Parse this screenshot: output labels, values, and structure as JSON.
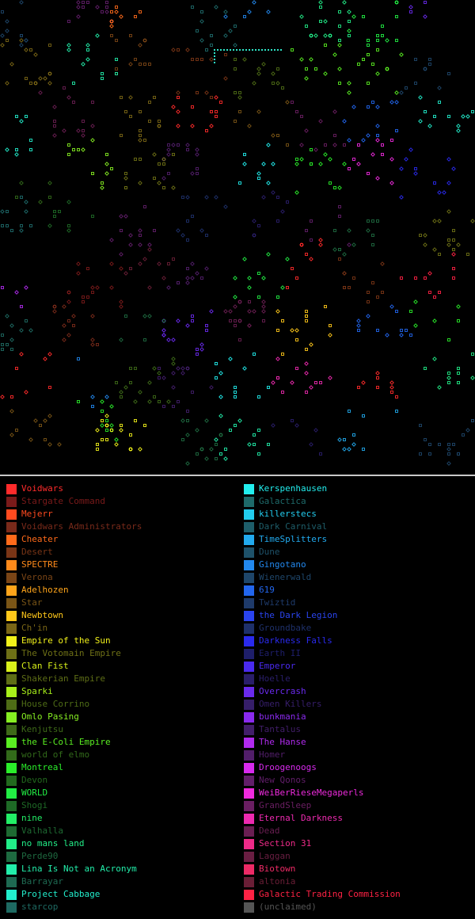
{
  "map": {
    "seed": 7,
    "stars_per_region": 900,
    "fleet_line_color": "#2ee6c8"
  },
  "legend": {
    "left": [
      {
        "name": "Voidwars",
        "color": "#ff2b2b"
      },
      {
        "name": "Stargate Command",
        "color": "#7a1a1a"
      },
      {
        "name": "Mejerr",
        "color": "#ff4a1f"
      },
      {
        "name": "Voidwars Administrators",
        "color": "#7a2a1a"
      },
      {
        "name": "Cheater",
        "color": "#ff6a1a"
      },
      {
        "name": "Desert",
        "color": "#7a3516"
      },
      {
        "name": "SPECTRE",
        "color": "#ff8a1a"
      },
      {
        "name": "Verona",
        "color": "#7a4516"
      },
      {
        "name": "Adelhozen",
        "color": "#ffa51a"
      },
      {
        "name": "Star",
        "color": "#7a5516"
      },
      {
        "name": "Newbtown",
        "color": "#ffc81a"
      },
      {
        "name": "Ch'in",
        "color": "#7a6616"
      },
      {
        "name": "Empire of the Sun",
        "color": "#f2f21a"
      },
      {
        "name": "The Votomain Empire",
        "color": "#6e7016"
      },
      {
        "name": "Clan Fist",
        "color": "#d8f01a"
      },
      {
        "name": "Shakerian Empire",
        "color": "#5e6e16"
      },
      {
        "name": "Sparki",
        "color": "#a8f01a"
      },
      {
        "name": "House Corrino",
        "color": "#4e6c16"
      },
      {
        "name": "Omlo Pasing",
        "color": "#86ee22"
      },
      {
        "name": "Kenjutsu",
        "color": "#3e6a18"
      },
      {
        "name": "the E-Coli Empire",
        "color": "#5aee22"
      },
      {
        "name": "world of elmo",
        "color": "#326a1a"
      },
      {
        "name": "Montreal",
        "color": "#2aee2a"
      },
      {
        "name": "Devon",
        "color": "#226a1e"
      },
      {
        "name": "WORLD",
        "color": "#22ee44"
      },
      {
        "name": "Shogi",
        "color": "#1e6a26"
      },
      {
        "name": "nine",
        "color": "#22ee66"
      },
      {
        "name": "Valhalla",
        "color": "#1e6a32"
      },
      {
        "name": "no mans land",
        "color": "#22ee88"
      },
      {
        "name": "Perde90",
        "color": "#1e6a40"
      },
      {
        "name": "Lina Is Not an Acronym",
        "color": "#22eeaa"
      },
      {
        "name": "Barrayar",
        "color": "#1e6a52"
      },
      {
        "name": "Project Cabbage",
        "color": "#22eecc"
      },
      {
        "name": "starcop",
        "color": "#1e6a62"
      }
    ],
    "right": [
      {
        "name": "Kerspenhausen",
        "color": "#22eeee"
      },
      {
        "name": "Galactica",
        "color": "#1e6a6a"
      },
      {
        "name": "killerstecs",
        "color": "#22ccee"
      },
      {
        "name": "Dark Carnival",
        "color": "#1e5e6a"
      },
      {
        "name": "TimeSplitters",
        "color": "#22aaee"
      },
      {
        "name": "Dune",
        "color": "#1e526a"
      },
      {
        "name": "Gingotano",
        "color": "#2288ee"
      },
      {
        "name": "Wienerwald",
        "color": "#1e466a"
      },
      {
        "name": "619",
        "color": "#2266ee"
      },
      {
        "name": "Twiztid",
        "color": "#1e3a6a"
      },
      {
        "name": "the Dark Legion",
        "color": "#2a44ee"
      },
      {
        "name": "Groundbake",
        "color": "#1e306a"
      },
      {
        "name": "Darkness Falls",
        "color": "#2a2aee"
      },
      {
        "name": "Earth II",
        "color": "#1e1e6a"
      },
      {
        "name": "Emperor",
        "color": "#4a2aee"
      },
      {
        "name": "Hoelle",
        "color": "#2a1e6a"
      },
      {
        "name": "Overcrash",
        "color": "#6a2aee"
      },
      {
        "name": "Omen Killers",
        "color": "#361e6a"
      },
      {
        "name": "bunkmania",
        "color": "#8a2aee"
      },
      {
        "name": "Tantalus",
        "color": "#421e6a"
      },
      {
        "name": "The Hanse",
        "color": "#b02aee"
      },
      {
        "name": "Homer",
        "color": "#521e6a"
      },
      {
        "name": "Droogenoogs",
        "color": "#d82aee"
      },
      {
        "name": "New Qonos",
        "color": "#621e6a"
      },
      {
        "name": "WeiBerRieseMegaperls",
        "color": "#ee2add"
      },
      {
        "name": "GrandSleep",
        "color": "#6a1e62"
      },
      {
        "name": "Eternal Darkness",
        "color": "#ee2ab0"
      },
      {
        "name": "Dead",
        "color": "#6a1e52"
      },
      {
        "name": "Section 31",
        "color": "#ee2a88"
      },
      {
        "name": "Laggan",
        "color": "#6a1e42"
      },
      {
        "name": "Biotown",
        "color": "#ee2a66"
      },
      {
        "name": "altonia",
        "color": "#6a1e36"
      },
      {
        "name": "Galactic Trading Commission",
        "color": "#ff2244"
      },
      {
        "name": "(unclaimed)",
        "color": "#555555"
      }
    ]
  }
}
